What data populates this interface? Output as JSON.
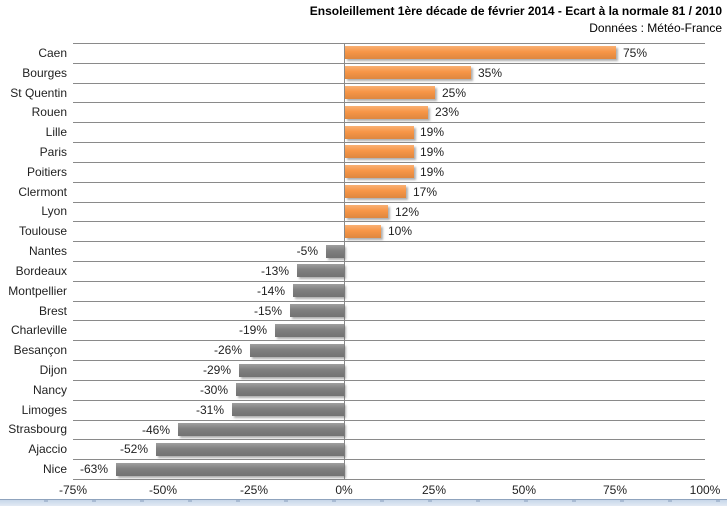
{
  "header": {
    "title": "Ensoleillement 1ère décade de février 2014 - Ecart à la normale 81 / 2010",
    "subtitle": "Données : Météo-France"
  },
  "chart_data": {
    "type": "bar",
    "orientation": "horizontal",
    "title": "Ensoleillement 1ère décade de février 2014 - Ecart à la normale 81 / 2010",
    "subtitle": "Données : Météo-France",
    "categories": [
      "Caen",
      "Bourges",
      "St Quentin",
      "Rouen",
      "Lille",
      "Paris",
      "Poitiers",
      "Clermont",
      "Lyon",
      "Toulouse",
      "Nantes",
      "Bordeaux",
      "Montpellier",
      "Brest",
      "Charleville",
      "Besançon",
      "Dijon",
      "Nancy",
      "Limoges",
      "Strasbourg",
      "Ajaccio",
      "Nice"
    ],
    "values": [
      75,
      35,
      25,
      23,
      19,
      19,
      19,
      17,
      12,
      10,
      -5,
      -13,
      -14,
      -15,
      -19,
      -26,
      -29,
      -30,
      -31,
      -46,
      -52,
      -63
    ],
    "value_labels": [
      "75%",
      "35%",
      "25%",
      "23%",
      "19%",
      "19%",
      "19%",
      "17%",
      "12%",
      "10%",
      "-5%",
      "-13%",
      "-14%",
      "-15%",
      "-19%",
      "-26%",
      "-29%",
      "-30%",
      "-31%",
      "-46%",
      "-52%",
      "-63%"
    ],
    "xlabel": "",
    "ylabel": "",
    "xlim": [
      -75,
      100
    ],
    "x_tick_values": [
      -75,
      -50,
      -25,
      0,
      25,
      50,
      75,
      100
    ],
    "x_tick_labels": [
      "-75%",
      "-50%",
      "-25%",
      "0%",
      "25%",
      "50%",
      "75%",
      "100%"
    ],
    "grid": "horizontal-category-gridlines",
    "legend": "none",
    "colors": {
      "positive_bar": "#F79646",
      "negative_bar": "#7F7F7F",
      "gridline": "#8a8a8a",
      "axis_line": "#8a8a8a",
      "text": "#1f1f1f",
      "frame_bottom": "#c7d7e9"
    }
  }
}
